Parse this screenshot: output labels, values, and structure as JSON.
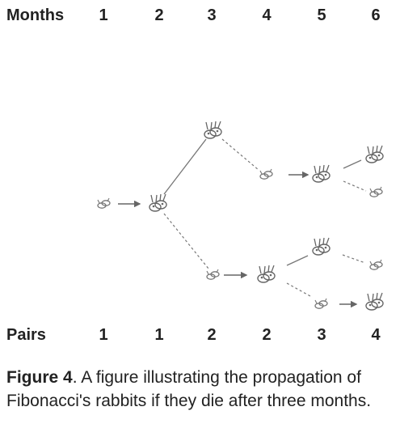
{
  "header": {
    "months_label": "Months",
    "months": [
      "1",
      "2",
      "3",
      "4",
      "5",
      "6"
    ]
  },
  "footer": {
    "pairs_label": "Pairs",
    "pairs": [
      "1",
      "1",
      "2",
      "2",
      "3",
      "4"
    ]
  },
  "caption": {
    "bold": "Figure 4",
    "text": ". A figure illustrating the propagation of Fibonacci's rabbits if they die after three months."
  }
}
